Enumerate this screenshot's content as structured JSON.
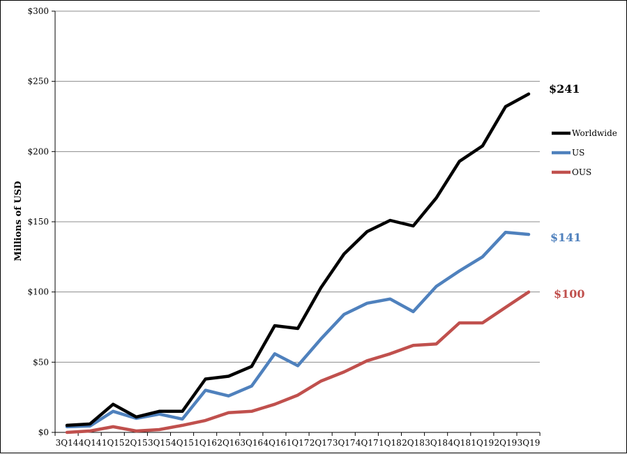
{
  "chart_data": {
    "type": "line",
    "title": "",
    "xlabel": "",
    "ylabel": "Millions of USD",
    "ylim": [
      0,
      300
    ],
    "yticks": [
      0,
      50,
      100,
      150,
      200,
      250,
      300
    ],
    "ytick_labels": [
      "$0",
      "$50",
      "$100",
      "$150",
      "$200",
      "$250",
      "$300"
    ],
    "grid": true,
    "legend_position": "right",
    "categories": [
      "3Q14",
      "4Q14",
      "1Q15",
      "2Q15",
      "3Q15",
      "4Q15",
      "1Q16",
      "2Q16",
      "3Q16",
      "4Q16",
      "1Q17",
      "2Q17",
      "3Q17",
      "4Q17",
      "1Q18",
      "2Q18",
      "3Q18",
      "4Q18",
      "1Q19",
      "2Q19",
      "3Q19"
    ],
    "series": [
      {
        "name": "Worldwide",
        "color": "#000000",
        "values": [
          5,
          6,
          20,
          11,
          15,
          15,
          38,
          40,
          47,
          76,
          74,
          103,
          127,
          143,
          151,
          147,
          167,
          193,
          204,
          232,
          241
        ],
        "end_label": "$241"
      },
      {
        "name": "US",
        "color": "#4f81bd",
        "values": [
          4,
          4.5,
          15,
          10,
          13,
          9.5,
          30,
          26,
          33,
          56,
          47.5,
          66.5,
          84,
          92,
          95,
          86,
          104,
          115,
          125,
          142.5,
          141
        ],
        "end_label": "$141"
      },
      {
        "name": "OUS",
        "color": "#c0504d",
        "values": [
          0,
          1,
          4,
          1,
          2,
          5,
          8.5,
          14,
          15,
          20,
          26.5,
          36.5,
          43,
          51,
          56,
          62,
          63,
          78,
          78,
          89,
          100
        ],
        "end_label": "$100"
      }
    ]
  }
}
